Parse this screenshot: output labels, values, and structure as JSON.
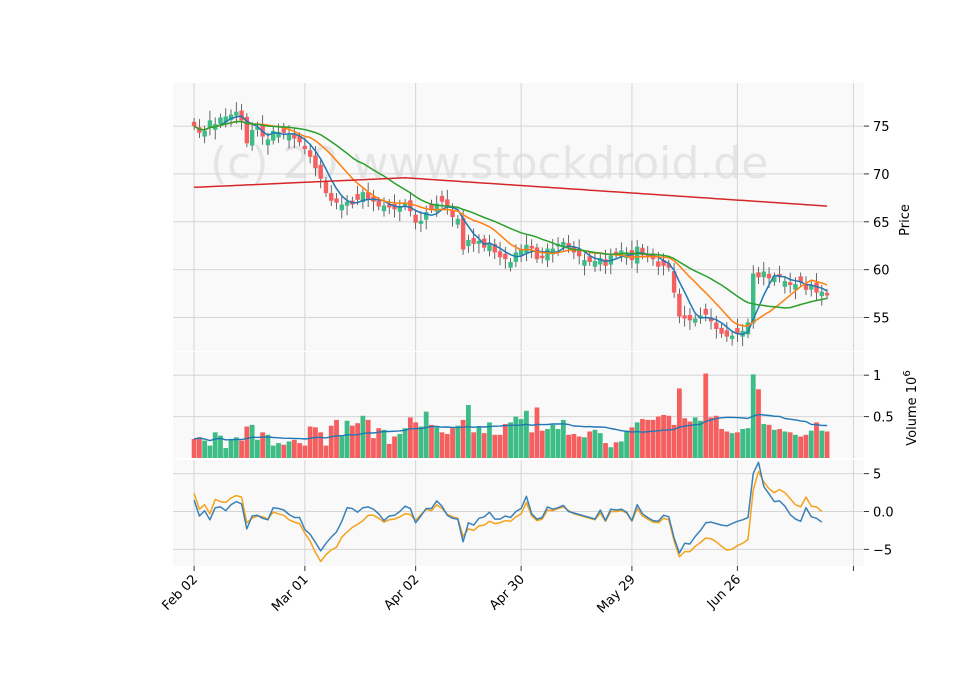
{
  "watermark": "(c) 20 www.stockdroid.de",
  "colors": {
    "up": "#3dbd85",
    "down": "#f55f5f",
    "panel_bg": "#f9f9f9",
    "grid": "#d5d5d5",
    "ma_blue": "#1f77b4",
    "ma_orange": "#ff7f0e",
    "ma_green": "#2ca02c",
    "ma_red": "#d62728",
    "vol_avg": "#1f77b4",
    "macd_line": "#3a81b8",
    "signal_line": "#f5a21a"
  },
  "chart_data": [
    {
      "type": "candlestick",
      "panel": "price",
      "ylabel": "Price",
      "ylim": [
        51.5,
        79.5
      ],
      "yticks": [
        55,
        60,
        65,
        70,
        75
      ],
      "xlim": [
        -4,
        127
      ],
      "x_ticks": [
        {
          "index": 0,
          "label": "Feb 02"
        },
        {
          "index": 21,
          "label": "Mar 01"
        },
        {
          "index": 42,
          "label": "Apr 02"
        },
        {
          "index": 62,
          "label": "Apr 30"
        },
        {
          "index": 83,
          "label": "May 29"
        },
        {
          "index": 103,
          "label": "Jun 26"
        },
        {
          "index": 125,
          "label": ""
        }
      ],
      "grid": true,
      "close": [
        75.0,
        74.3,
        74.5,
        75.6,
        75.2,
        75.9,
        76.0,
        76.2,
        76.5,
        75.6,
        73.2,
        74.6,
        74.9,
        73.9,
        73.6,
        74.5,
        74.4,
        74.3,
        74.1,
        73.7,
        73.3,
        72.6,
        71.8,
        70.6,
        69.5,
        68.0,
        67.2,
        67.0,
        66.8,
        67.1,
        66.8,
        67.3,
        68.1,
        67.4,
        67.1,
        66.6,
        66.7,
        66.5,
        66.3,
        66.6,
        67.0,
        66.1,
        64.9,
        65.1,
        66.0,
        66.3,
        66.9,
        67.1,
        66.6,
        65.5,
        65.3,
        62.1,
        63.1,
        62.7,
        63.0,
        62.3,
        62.8,
        61.8,
        61.3,
        61.1,
        60.8,
        61.8,
        62.1,
        62.6,
        62.2,
        61.1,
        61.2,
        62.2,
        62.2,
        62.7,
        62.9,
        62.3,
        61.8,
        61.4,
        61.0,
        60.8,
        60.9,
        61.2,
        60.4,
        61.5,
        61.6,
        62.0,
        61.8,
        61.0,
        62.4,
        61.5,
        61.3,
        61.1,
        60.3,
        60.4,
        60.2,
        57.6,
        55.1,
        54.9,
        54.7,
        54.9,
        55.2,
        55.3,
        54.6,
        53.8,
        53.3,
        53.0,
        53.1,
        53.3,
        53.6,
        54.5,
        59.6,
        59.2,
        59.8,
        59.1,
        59.3,
        59.2,
        58.8,
        58.4,
        58.5,
        58.7,
        57.9,
        58.4,
        57.6,
        57.7,
        57.3
      ]
    },
    {
      "type": "bar",
      "panel": "volume",
      "ylabel": "Volume  10^6",
      "ylim": [
        0,
        1.28
      ],
      "yticks": [
        0.5,
        1.0
      ],
      "values": [
        0.23,
        0.25,
        0.21,
        0.15,
        0.31,
        0.27,
        0.12,
        0.23,
        0.25,
        0.21,
        0.38,
        0.4,
        0.22,
        0.31,
        0.28,
        0.15,
        0.18,
        0.16,
        0.2,
        0.22,
        0.18,
        0.15,
        0.38,
        0.37,
        0.31,
        0.15,
        0.39,
        0.46,
        0.26,
        0.45,
        0.39,
        0.42,
        0.51,
        0.46,
        0.24,
        0.36,
        0.34,
        0.17,
        0.26,
        0.29,
        0.36,
        0.49,
        0.43,
        0.38,
        0.56,
        0.4,
        0.37,
        0.31,
        0.29,
        0.36,
        0.39,
        0.46,
        0.64,
        0.31,
        0.38,
        0.3,
        0.43,
        0.28,
        0.28,
        0.41,
        0.43,
        0.5,
        0.47,
        0.57,
        0.31,
        0.61,
        0.33,
        0.35,
        0.4,
        0.35,
        0.46,
        0.28,
        0.29,
        0.26,
        0.25,
        0.32,
        0.34,
        0.3,
        0.18,
        0.13,
        0.19,
        0.2,
        0.33,
        0.37,
        0.43,
        0.47,
        0.46,
        0.46,
        0.5,
        0.52,
        0.51,
        0.4,
        0.84,
        0.48,
        0.44,
        0.49,
        0.45,
        1.02,
        0.49,
        0.51,
        0.35,
        0.32,
        0.3,
        0.31,
        0.35,
        0.36,
        1.01,
        0.83,
        0.41,
        0.4,
        0.34,
        0.35,
        0.32,
        0.31,
        0.28,
        0.26,
        0.28,
        0.33,
        0.43,
        0.33,
        0.32
      ]
    },
    {
      "type": "line",
      "panel": "macd",
      "ylim": [
        -7.2,
        6.8
      ],
      "yticks": [
        -5,
        0,
        5
      ],
      "series": [
        {
          "values": [
            1.5,
            -0.6,
            0.1,
            -1.1,
            0.5,
            0.6,
            0.1,
            0.9,
            1.3,
            1.0,
            -2.3,
            -0.6,
            -0.5,
            -0.9,
            -1.1,
            0.5,
            0.4,
            0.2,
            -0.4,
            -0.8,
            -0.8,
            -2.4,
            -3.0,
            -4.1,
            -5.2,
            -4.2,
            -3.4,
            -2.7,
            -1.3,
            0.5,
            0.4,
            -0.1,
            0.5,
            0.6,
            0.3,
            -0.3,
            -1.2,
            -0.6,
            -0.5,
            0.0,
            0.7,
            0.4,
            -1.5,
            -0.6,
            0.4,
            0.4,
            1.4,
            0.7,
            -0.5,
            -0.9,
            -1.0,
            -4.0,
            -1.5,
            -1.8,
            -0.9,
            -0.7,
            -0.1,
            -1.0,
            -1.0,
            -0.6,
            -0.8,
            0.0,
            0.4,
            2.0,
            -0.3,
            -1.0,
            -0.8,
            0.6,
            0.3,
            0.5,
            0.8,
            0.0,
            -0.2,
            -0.4,
            -0.6,
            -0.8,
            -1.0,
            0.2,
            -1.2,
            0.3,
            0.2,
            0.3,
            -0.1,
            -1.2,
            0.9,
            -0.3,
            -0.8,
            -1.2,
            -1.3,
            -0.5,
            -0.7,
            -3.5,
            -5.5,
            -4.2,
            -4.3,
            -3.3,
            -2.5,
            -1.5,
            -1.4,
            -1.6,
            -1.8,
            -1.9,
            -1.6,
            -1.3,
            -1.1,
            -0.8,
            5.0,
            6.5,
            3.3,
            2.3,
            1.3,
            1.4,
            0.7,
            -0.4,
            -1.0,
            -1.3,
            0.5,
            -0.7,
            -0.9,
            -1.4
          ]
        },
        {
          "values": [
            2.4,
            0.3,
            0.9,
            -0.3,
            1.6,
            1.3,
            1.2,
            1.8,
            2.1,
            1.9,
            -1.5,
            -0.9,
            -0.6,
            -0.7,
            -1.0,
            -0.1,
            -0.3,
            -0.5,
            -1.1,
            -1.4,
            -1.6,
            -2.9,
            -3.9,
            -5.4,
            -6.6,
            -5.7,
            -5.1,
            -4.7,
            -3.4,
            -2.7,
            -2.1,
            -1.7,
            -1.2,
            -0.5,
            -0.5,
            -0.9,
            -1.4,
            -1.1,
            -1.0,
            -0.7,
            -0.3,
            -0.4,
            -1.2,
            -0.4,
            0.3,
            0.1,
            0.9,
            0.4,
            -0.4,
            -0.7,
            -0.9,
            -3.3,
            -2.3,
            -2.5,
            -1.9,
            -1.8,
            -1.3,
            -1.6,
            -1.5,
            -1.2,
            -1.3,
            -0.7,
            -0.3,
            1.2,
            -0.6,
            -1.2,
            -1.0,
            0.2,
            0.1,
            0.4,
            0.6,
            0.1,
            -0.3,
            -0.5,
            -0.7,
            -0.9,
            -1.1,
            -0.2,
            -1.3,
            0.0,
            0.0,
            0.1,
            -0.2,
            -1.3,
            0.4,
            -0.6,
            -1.0,
            -1.4,
            -1.5,
            -0.9,
            -1.1,
            -3.9,
            -6.0,
            -5.3,
            -5.3,
            -4.6,
            -4.1,
            -3.5,
            -3.6,
            -4.0,
            -4.6,
            -5.1,
            -5.0,
            -4.5,
            -4.2,
            -3.7,
            2.8,
            5.3,
            3.9,
            3.0,
            2.5,
            2.9,
            2.5,
            1.7,
            0.9,
            0.6,
            1.9,
            0.7,
            0.6,
            0.0
          ]
        }
      ]
    }
  ]
}
